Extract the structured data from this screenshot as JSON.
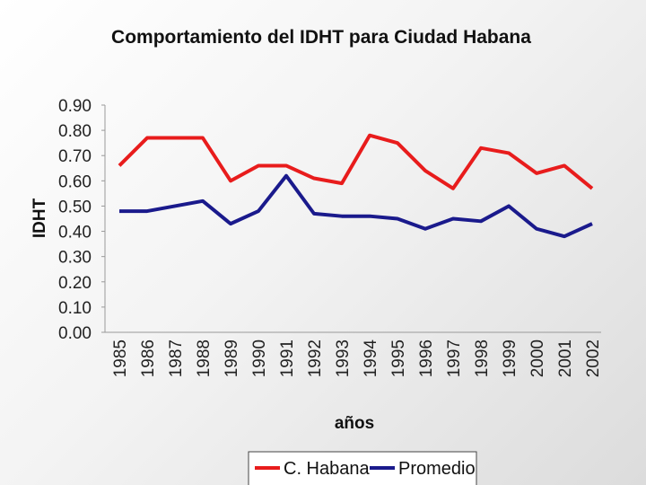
{
  "chart_data": {
    "type": "line",
    "title": "Comportamiento del IDHT para Ciudad Habana",
    "xlabel": "años",
    "ylabel": "IDHT",
    "categories": [
      "1985",
      "1986",
      "1987",
      "1988",
      "1989",
      "1990",
      "1991",
      "1992",
      "1993",
      "1994",
      "1995",
      "1996",
      "1997",
      "1998",
      "1999",
      "2000",
      "2001",
      "2002"
    ],
    "ylim": [
      0,
      0.9
    ],
    "yticks": [
      "0.00",
      "0.10",
      "0.20",
      "0.30",
      "0.40",
      "0.50",
      "0.60",
      "0.70",
      "0.80",
      "0.90"
    ],
    "legend_position": "bottom",
    "series": [
      {
        "name": "C. Habana",
        "color": "#e81c1c",
        "values": [
          0.66,
          0.77,
          0.77,
          0.77,
          0.6,
          0.66,
          0.66,
          0.61,
          0.59,
          0.78,
          0.75,
          0.64,
          0.57,
          0.73,
          0.71,
          0.63,
          0.66,
          0.57
        ]
      },
      {
        "name": "Promedio",
        "color": "#1a1a8c",
        "values": [
          0.48,
          0.48,
          0.5,
          0.52,
          0.43,
          0.48,
          0.62,
          0.47,
          0.46,
          0.46,
          0.45,
          0.41,
          0.45,
          0.44,
          0.5,
          0.41,
          0.38,
          0.43
        ]
      }
    ]
  }
}
